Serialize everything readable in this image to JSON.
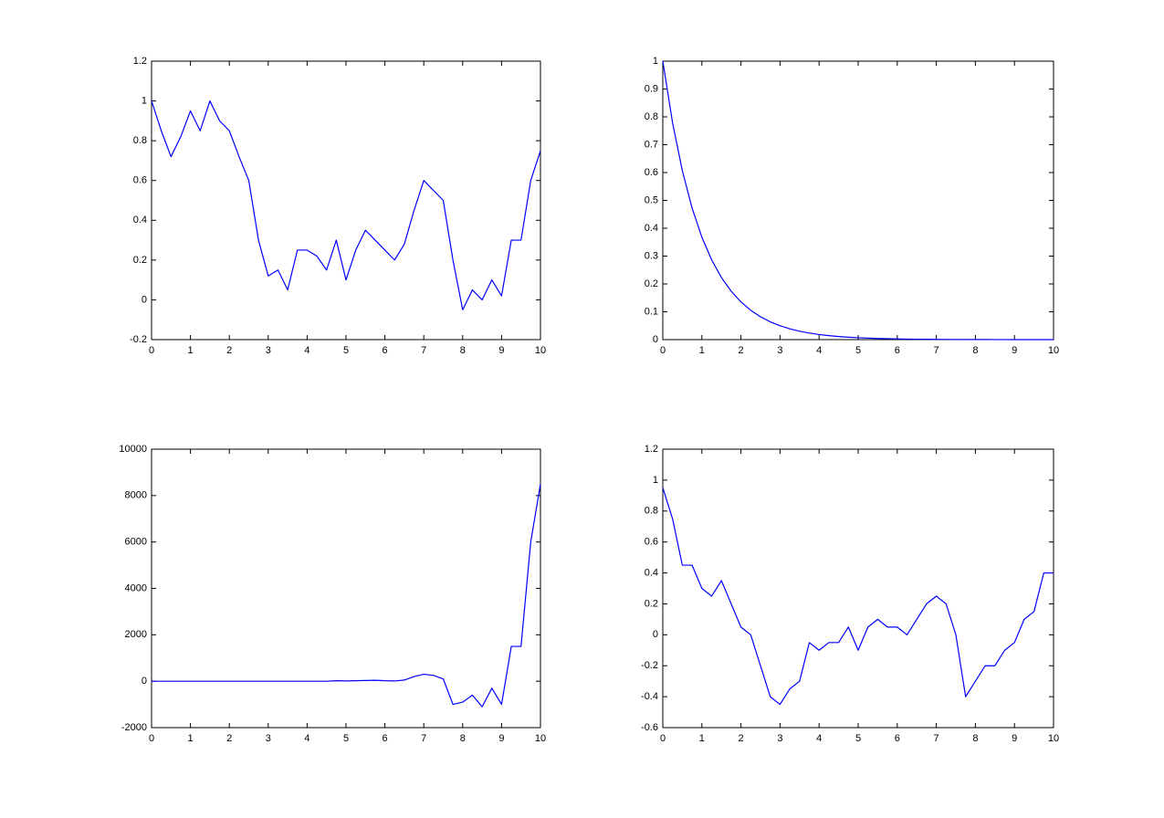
{
  "chart_data": [
    {
      "type": "line",
      "x": [
        0,
        0.25,
        0.5,
        0.75,
        1,
        1.25,
        1.5,
        1.75,
        2,
        2.25,
        2.5,
        2.75,
        3,
        3.25,
        3.5,
        3.75,
        4,
        4.25,
        4.5,
        4.75,
        5,
        5.25,
        5.5,
        5.75,
        6,
        6.25,
        6.5,
        6.75,
        7,
        7.25,
        7.5,
        7.75,
        8,
        8.25,
        8.5,
        8.75,
        9,
        9.25,
        9.5,
        9.75,
        10
      ],
      "values": [
        1.0,
        0.85,
        0.72,
        0.82,
        0.95,
        0.85,
        1.0,
        0.9,
        0.85,
        0.72,
        0.6,
        0.3,
        0.12,
        0.15,
        0.05,
        0.25,
        0.25,
        0.22,
        0.15,
        0.3,
        0.1,
        0.25,
        0.35,
        0.3,
        0.25,
        0.2,
        0.28,
        0.45,
        0.6,
        0.55,
        0.5,
        0.2,
        -0.05,
        0.05,
        0.0,
        0.1,
        0.02,
        0.3,
        0.3,
        0.6,
        0.75
      ],
      "color": "#0000ff",
      "xlim": [
        0,
        10
      ],
      "xticks": [
        0,
        1,
        2,
        3,
        4,
        5,
        6,
        7,
        8,
        9,
        10
      ],
      "ylim": [
        -0.2,
        1.2
      ],
      "yticks": [
        -0.2,
        0,
        0.2,
        0.4,
        0.6,
        0.8,
        1,
        1.2
      ]
    },
    {
      "type": "line",
      "x": [
        0,
        0.25,
        0.5,
        0.75,
        1,
        1.25,
        1.5,
        1.75,
        2,
        2.25,
        2.5,
        2.75,
        3,
        3.25,
        3.5,
        3.75,
        4,
        4.25,
        4.5,
        4.75,
        5,
        5.25,
        5.5,
        5.75,
        6,
        6.25,
        6.5,
        6.75,
        7,
        7.25,
        7.5,
        7.75,
        8,
        8.25,
        8.5,
        8.75,
        9,
        9.25,
        9.5,
        9.75,
        10
      ],
      "values": [
        1,
        0.7788,
        0.6065,
        0.4724,
        0.3679,
        0.2865,
        0.2231,
        0.1738,
        0.1353,
        0.1054,
        0.0821,
        0.0639,
        0.0498,
        0.0388,
        0.0302,
        0.0235,
        0.0183,
        0.0143,
        0.0111,
        0.0087,
        0.0067,
        0.0052,
        0.0041,
        0.0032,
        0.0025,
        0.0019,
        0.0015,
        0.0012,
        0.0009,
        0.0007,
        0.0006,
        0.0004,
        0.0003,
        0.0003,
        0.0002,
        0.0002,
        0.0001,
        0.0001,
        0.0001,
        0.0001,
        0
      ],
      "color": "#0000ff",
      "xlim": [
        0,
        10
      ],
      "xticks": [
        0,
        1,
        2,
        3,
        4,
        5,
        6,
        7,
        8,
        9,
        10
      ],
      "ylim": [
        0,
        1
      ],
      "yticks": [
        0,
        0.1,
        0.2,
        0.3,
        0.4,
        0.5,
        0.6,
        0.7,
        0.8,
        0.9,
        1
      ]
    },
    {
      "type": "line",
      "x": [
        0,
        0.25,
        0.5,
        0.75,
        1,
        1.25,
        1.5,
        1.75,
        2,
        2.25,
        2.5,
        2.75,
        3,
        3.25,
        3.5,
        3.75,
        4,
        4.25,
        4.5,
        4.75,
        5,
        5.25,
        5.5,
        5.75,
        6,
        6.25,
        6.5,
        6.75,
        7,
        7.25,
        7.5,
        7.75,
        8,
        8.25,
        8.5,
        8.75,
        9,
        9.25,
        9.5,
        9.75,
        10
      ],
      "values": [
        0,
        0,
        0,
        0,
        0,
        0,
        0,
        0,
        0,
        0,
        0,
        0,
        0,
        0,
        0,
        0,
        0,
        0,
        0,
        20,
        10,
        20,
        30,
        40,
        20,
        10,
        50,
        200,
        300,
        250,
        100,
        -1000,
        -900,
        -600,
        -1100,
        -300,
        -1000,
        1500,
        1500,
        6000,
        8500
      ],
      "color": "#0000ff",
      "xlim": [
        0,
        10
      ],
      "xticks": [
        0,
        1,
        2,
        3,
        4,
        5,
        6,
        7,
        8,
        9,
        10
      ],
      "ylim": [
        -2000,
        10000
      ],
      "yticks": [
        -2000,
        0,
        2000,
        4000,
        6000,
        8000,
        10000
      ]
    },
    {
      "type": "line",
      "x": [
        0,
        0.25,
        0.5,
        0.75,
        1,
        1.25,
        1.5,
        1.75,
        2,
        2.25,
        2.5,
        2.75,
        3,
        3.25,
        3.5,
        3.75,
        4,
        4.25,
        4.5,
        4.75,
        5,
        5.25,
        5.5,
        5.75,
        6,
        6.25,
        6.5,
        6.75,
        7,
        7.25,
        7.5,
        7.75,
        8,
        8.25,
        8.5,
        8.75,
        9,
        9.25,
        9.5,
        9.75,
        10
      ],
      "values": [
        0.95,
        0.75,
        0.45,
        0.45,
        0.3,
        0.25,
        0.35,
        0.2,
        0.05,
        0.0,
        -0.2,
        -0.4,
        -0.45,
        -0.35,
        -0.3,
        -0.05,
        -0.1,
        -0.05,
        -0.05,
        0.05,
        -0.1,
        0.05,
        0.1,
        0.05,
        0.05,
        0.0,
        0.1,
        0.2,
        0.25,
        0.2,
        0.0,
        -0.4,
        -0.3,
        -0.2,
        -0.2,
        -0.1,
        -0.05,
        0.1,
        0.15,
        0.4,
        0.4
      ],
      "color": "#0000ff",
      "xlim": [
        0,
        10
      ],
      "xticks": [
        0,
        1,
        2,
        3,
        4,
        5,
        6,
        7,
        8,
        9,
        10
      ],
      "ylim": [
        -0.6,
        1.2
      ],
      "yticks": [
        -0.6,
        -0.4,
        -0.2,
        0,
        0.2,
        0.4,
        0.6,
        0.8,
        1,
        1.2
      ]
    }
  ]
}
